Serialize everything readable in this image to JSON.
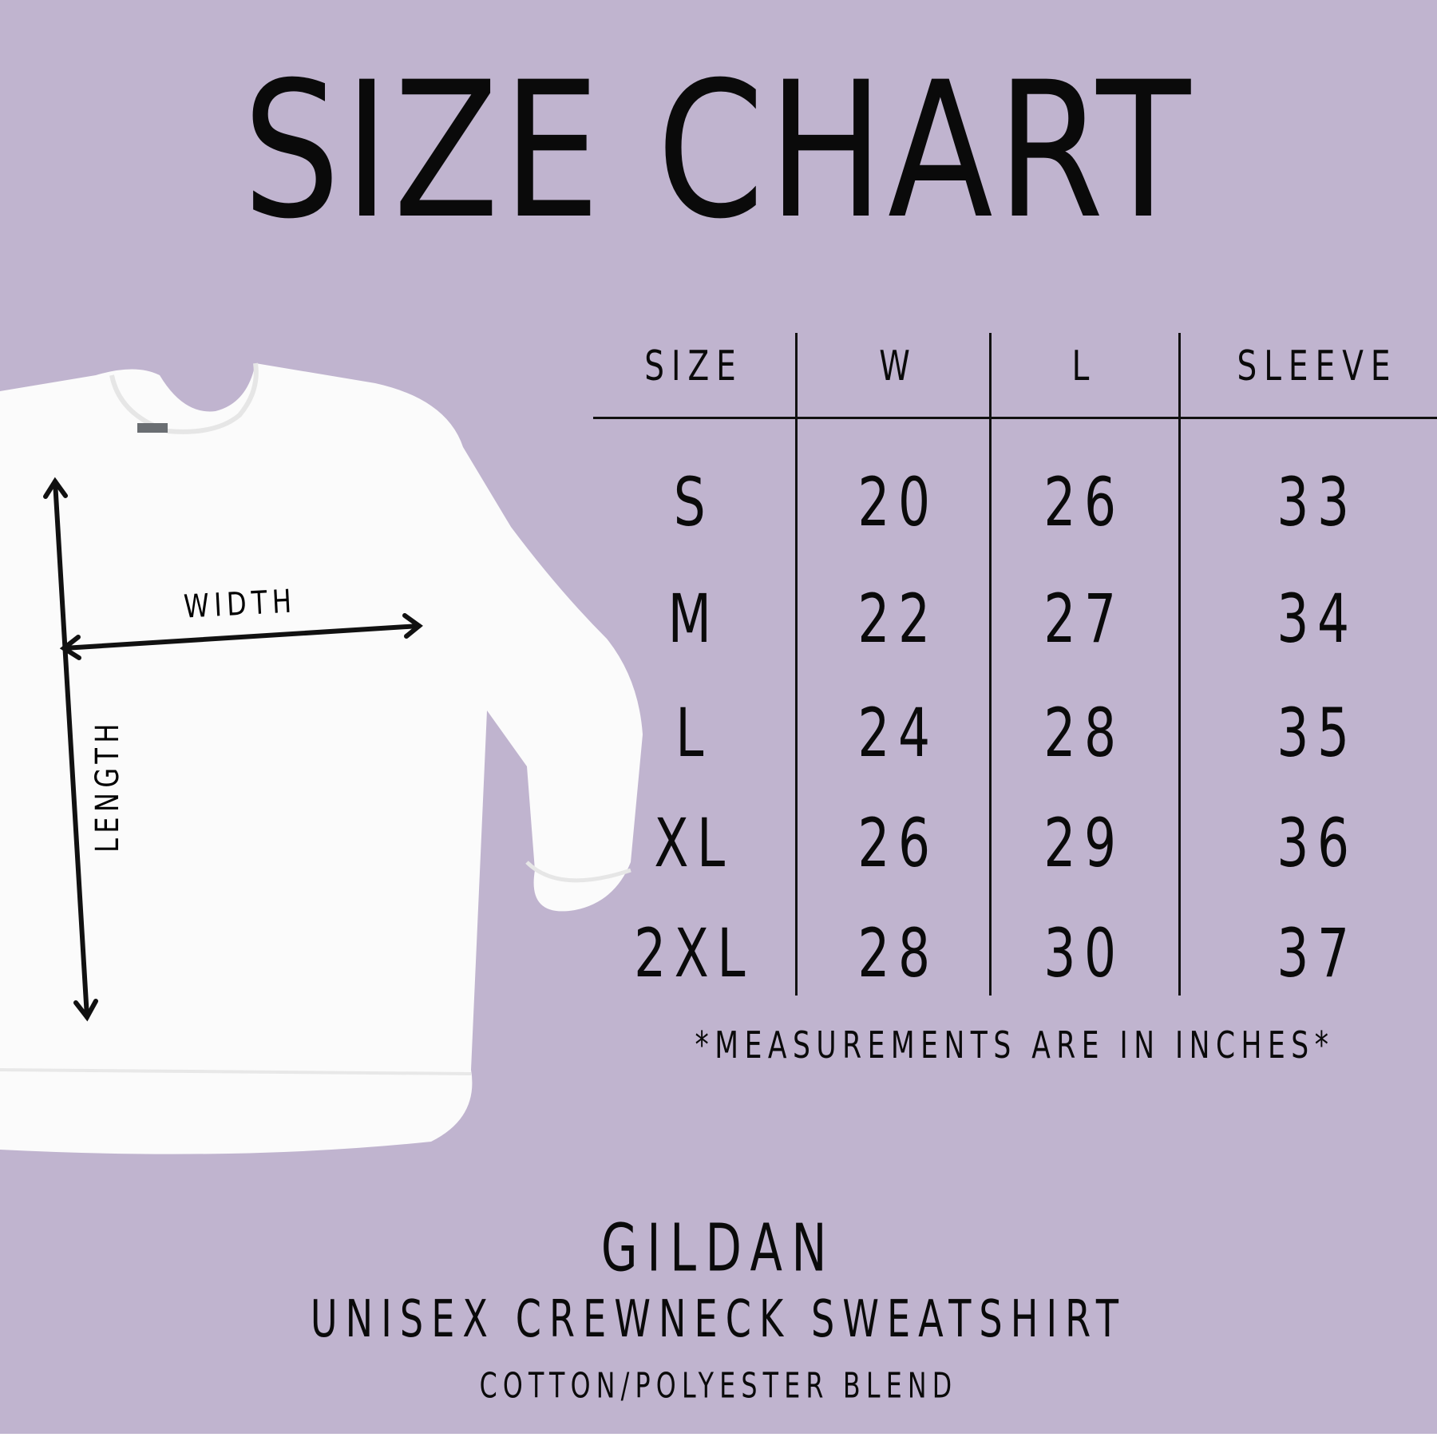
{
  "title": "SIZE CHART",
  "colors": {
    "background": "#c0b4cf",
    "text": "#0a0a0a",
    "garment": "#ffffff"
  },
  "diagram": {
    "width_label": "WIDTH",
    "length_label": "LENGTH"
  },
  "table": {
    "headers": [
      "SIZE",
      "W",
      "L",
      "SLEEVE"
    ],
    "rows": [
      [
        "S",
        "20",
        "26",
        "33"
      ],
      [
        "M",
        "22",
        "27",
        "34"
      ],
      [
        "L",
        "24",
        "28",
        "35"
      ],
      [
        "XL",
        "26",
        "29",
        "36"
      ],
      [
        "2XL",
        "28",
        "30",
        "37"
      ]
    ]
  },
  "note": "*MEASUREMENTS ARE IN INCHES*",
  "brand": "GILDAN",
  "product": "UNISEX CREWNECK SWEATSHIRT",
  "material": "COTTON/POLYESTER BLEND"
}
